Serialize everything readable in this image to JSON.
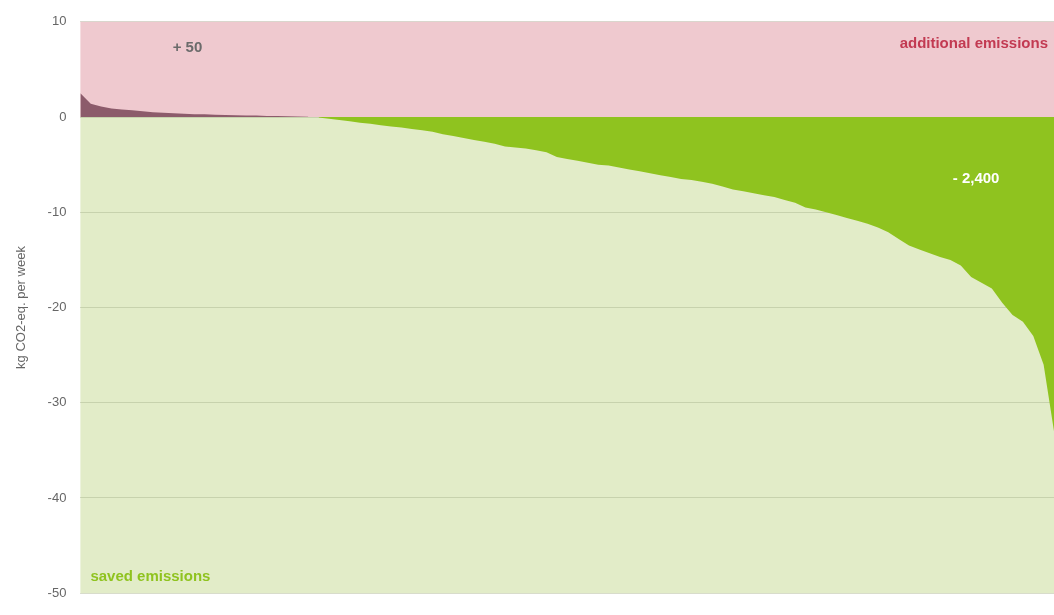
{
  "chart_data": {
    "type": "area",
    "ylabel": "kg CO2-eq. per week",
    "categories": [
      null,
      null,
      null,
      null,
      null,
      null,
      null,
      null,
      null,
      null,
      null,
      null,
      null,
      null,
      null,
      null,
      null,
      null,
      null,
      null,
      null,
      null,
      null,
      null,
      null,
      null,
      null,
      null,
      null,
      null,
      null,
      null,
      null,
      null,
      null,
      null,
      null,
      null,
      null,
      null,
      null,
      null,
      null,
      null,
      null,
      null,
      null,
      null,
      null,
      null,
      null,
      null,
      null,
      null,
      null,
      null,
      null,
      null,
      null,
      null,
      null,
      null,
      null,
      null,
      null,
      null,
      null,
      null,
      null,
      null,
      null,
      null,
      null,
      null,
      null,
      null,
      null,
      null,
      null,
      null,
      null,
      null,
      null,
      null,
      null,
      null,
      null,
      null,
      null,
      null,
      null,
      null,
      null,
      null,
      null
    ],
    "series": [
      {
        "color": "#8c5b6b",
        "values": [
          2.5,
          1.4,
          1.1,
          0.9,
          0.8,
          0.7,
          0.6,
          0.5,
          0.45,
          0.4,
          0.35,
          0.3,
          0.28,
          0.25,
          0.22,
          0.2,
          0.17,
          0.15,
          0.12,
          0.1,
          0.07,
          0.05,
          0.02,
          null,
          null,
          null,
          null,
          null,
          null,
          null,
          null,
          null,
          null,
          null,
          null,
          null,
          null,
          null,
          null,
          null,
          null,
          null,
          null,
          null,
          null,
          null,
          null,
          null,
          null,
          null,
          null,
          null,
          null,
          null,
          null,
          null,
          null,
          null,
          null,
          null,
          null,
          null,
          null,
          null,
          null,
          null,
          null,
          null,
          null,
          null,
          null,
          null,
          null,
          null,
          null,
          null,
          null,
          null,
          null,
          null,
          null,
          null,
          null,
          null,
          null,
          null,
          null,
          null,
          null,
          null,
          null,
          null,
          null,
          null,
          null
        ]
      },
      {
        "color": "#8fc31f",
        "values": [
          null,
          null,
          null,
          null,
          null,
          null,
          null,
          null,
          null,
          null,
          null,
          null,
          null,
          null,
          null,
          null,
          null,
          null,
          null,
          null,
          null,
          null,
          null,
          -0.04,
          -0.18,
          -0.3,
          -0.45,
          -0.6,
          -0.7,
          -0.85,
          -1.0,
          -1.1,
          -1.25,
          -1.4,
          -1.55,
          -1.8,
          -2.0,
          -2.2,
          -2.4,
          -2.6,
          -2.8,
          -3.1,
          -3.2,
          -3.3,
          -3.5,
          -3.7,
          -4.2,
          -4.4,
          -4.6,
          -4.8,
          -5.0,
          -5.1,
          -5.3,
          -5.5,
          -5.7,
          -5.9,
          -6.1,
          -6.3,
          -6.5,
          -6.6,
          -6.8,
          -7.0,
          -7.3,
          -7.6,
          -7.8,
          -8.0,
          -8.2,
          -8.4,
          -8.7,
          -9.0,
          -9.5,
          -9.7,
          -10.0,
          -10.3,
          -10.6,
          -10.9,
          -11.2,
          -11.6,
          -12.1,
          -12.8,
          -13.5,
          -13.9,
          -14.3,
          -14.7,
          -15.0,
          -15.6,
          -16.8,
          -17.4,
          -18.0,
          -19.5,
          -20.8,
          -21.5,
          -23.0,
          -26.0,
          -33.0
        ]
      }
    ],
    "ylim": [
      -50,
      10
    ],
    "yticks": [
      10,
      0,
      -10,
      -20,
      -30,
      -40,
      -50
    ],
    "grid": "y",
    "legend": false,
    "tick_labels": "y",
    "bands": [
      {
        "axis": "y",
        "from": 0,
        "to": 10,
        "label": "additional emissions",
        "color": "#efc9cf"
      },
      {
        "axis": "y",
        "from": -50,
        "to": 0,
        "label": "saved emissions",
        "color": "#e2ecc8"
      }
    ],
    "annotations": [
      "+ 50",
      "- 2,400"
    ]
  }
}
